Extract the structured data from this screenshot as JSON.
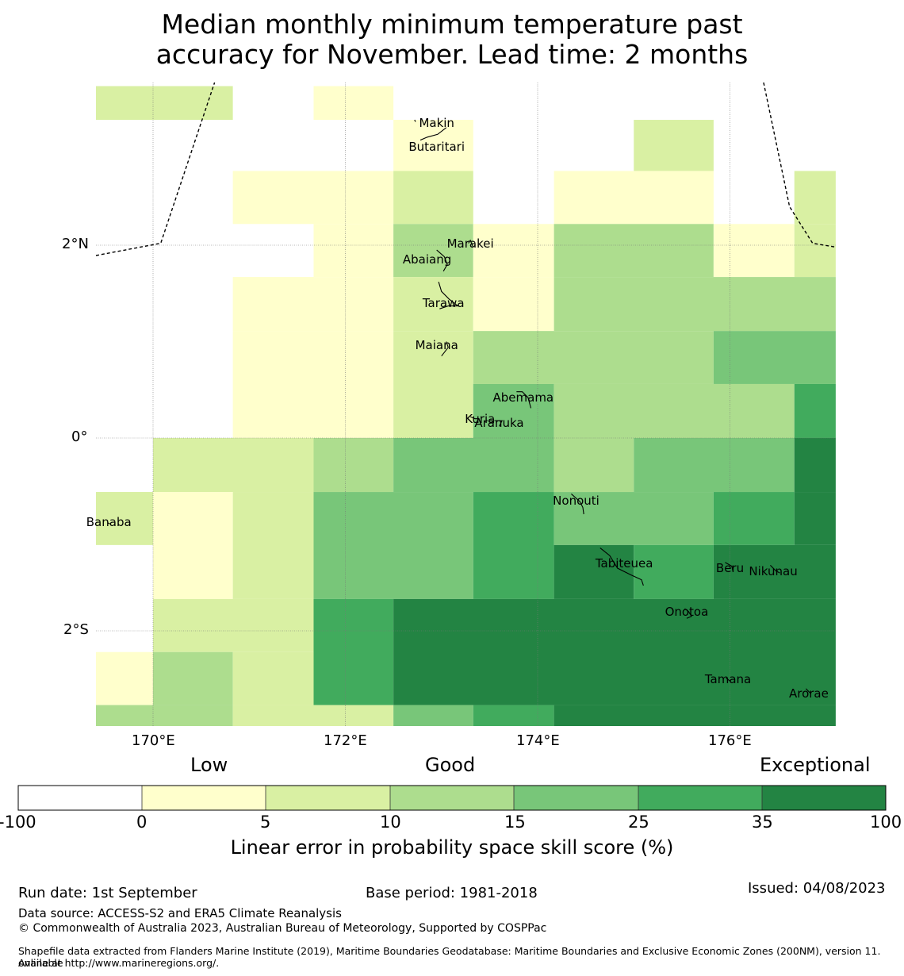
{
  "title_line1": "Median monthly minimum temperature past",
  "title_line2": "accuracy for November. Lead time: 2 months",
  "map": {
    "lat_labels": [
      "2°N",
      "0°",
      "2°S"
    ],
    "lon_labels": [
      "170°E",
      "172°E",
      "174°E",
      "176°E"
    ],
    "places": [
      {
        "name": "Makin",
        "lon": 172.95,
        "lat": 3.27
      },
      {
        "name": "Butaritari",
        "lon": 172.95,
        "lat": 3.02
      },
      {
        "name": "Marakei",
        "lon": 173.3,
        "lat": 2.02
      },
      {
        "name": "Abaiang",
        "lon": 172.85,
        "lat": 1.85
      },
      {
        "name": "Tarawa",
        "lon": 173.02,
        "lat": 1.4
      },
      {
        "name": "Maiana",
        "lon": 172.95,
        "lat": 0.96
      },
      {
        "name": "Abemama",
        "lon": 173.85,
        "lat": 0.42
      },
      {
        "name": "Kuria",
        "lon": 173.4,
        "lat": 0.2
      },
      {
        "name": "Aranuka",
        "lon": 173.6,
        "lat": 0.16
      },
      {
        "name": "Nonouti",
        "lon": 174.4,
        "lat": -0.65
      },
      {
        "name": "Banaba",
        "lon": 169.54,
        "lat": -0.87
      },
      {
        "name": "Tabiteuea",
        "lon": 174.9,
        "lat": -1.3
      },
      {
        "name": "Beru",
        "lon": 176.0,
        "lat": -1.35
      },
      {
        "name": "Nikunau",
        "lon": 176.45,
        "lat": -1.38
      },
      {
        "name": "Onotoa",
        "lon": 175.55,
        "lat": -1.8
      },
      {
        "name": "Tamana",
        "lon": 175.98,
        "lat": -2.5
      },
      {
        "name": "Arorae",
        "lon": 176.82,
        "lat": -2.65
      }
    ],
    "grid_cells": [
      {
        "lon0": 169.4,
        "lon1": 170.83,
        "lat0": 3.3,
        "lat1": 3.65,
        "cls": 2
      },
      {
        "lon0": 171.67,
        "lon1": 172.5,
        "lat0": 3.3,
        "lat1": 3.65,
        "cls": 1
      },
      {
        "lon0": 172.5,
        "lon1": 173.33,
        "lat0": 2.77,
        "lat1": 3.3,
        "cls": 1
      },
      {
        "lon0": 175.0,
        "lon1": 175.83,
        "lat0": 2.77,
        "lat1": 3.3,
        "cls": 2
      },
      {
        "lon0": 170.83,
        "lon1": 172.5,
        "lat0": 2.22,
        "lat1": 2.77,
        "cls": 1
      },
      {
        "lon0": 172.5,
        "lon1": 173.33,
        "lat0": 2.22,
        "lat1": 2.77,
        "cls": 2
      },
      {
        "lon0": 174.17,
        "lon1": 175.83,
        "lat0": 2.22,
        "lat1": 2.77,
        "cls": 1
      },
      {
        "lon0": 176.67,
        "lon1": 177.1,
        "lat0": 2.22,
        "lat1": 2.77,
        "cls": 2
      },
      {
        "lon0": 171.67,
        "lon1": 172.5,
        "lat0": 1.67,
        "lat1": 2.22,
        "cls": 1
      },
      {
        "lon0": 172.5,
        "lon1": 173.33,
        "lat0": 1.67,
        "lat1": 2.22,
        "cls": 3
      },
      {
        "lon0": 173.33,
        "lon1": 174.17,
        "lat0": 1.67,
        "lat1": 2.22,
        "cls": 1
      },
      {
        "lon0": 174.17,
        "lon1": 175.83,
        "lat0": 1.67,
        "lat1": 2.22,
        "cls": 3
      },
      {
        "lon0": 175.83,
        "lon1": 176.67,
        "lat0": 1.67,
        "lat1": 2.22,
        "cls": 1
      },
      {
        "lon0": 176.67,
        "lon1": 177.1,
        "lat0": 1.67,
        "lat1": 2.22,
        "cls": 2
      },
      {
        "lon0": 170.83,
        "lon1": 172.5,
        "lat0": 1.11,
        "lat1": 1.67,
        "cls": 1
      },
      {
        "lon0": 172.5,
        "lon1": 173.33,
        "lat0": 1.11,
        "lat1": 1.67,
        "cls": 2
      },
      {
        "lon0": 173.33,
        "lon1": 174.17,
        "lat0": 1.11,
        "lat1": 1.67,
        "cls": 1
      },
      {
        "lon0": 174.17,
        "lon1": 177.1,
        "lat0": 1.11,
        "lat1": 1.67,
        "cls": 3
      },
      {
        "lon0": 170.83,
        "lon1": 172.5,
        "lat0": 0.0,
        "lat1": 1.11,
        "cls": 1
      },
      {
        "lon0": 172.5,
        "lon1": 173.33,
        "lat0": 0.0,
        "lat1": 1.11,
        "cls": 2
      },
      {
        "lon0": 173.33,
        "lon1": 175.83,
        "lat0": 0.56,
        "lat1": 1.11,
        "cls": 3
      },
      {
        "lon0": 175.83,
        "lon1": 177.1,
        "lat0": 0.56,
        "lat1": 1.11,
        "cls": 4
      },
      {
        "lon0": 173.33,
        "lon1": 174.17,
        "lat0": 0.0,
        "lat1": 0.56,
        "cls": 4
      },
      {
        "lon0": 174.17,
        "lon1": 176.67,
        "lat0": 0.0,
        "lat1": 0.56,
        "cls": 3
      },
      {
        "lon0": 176.67,
        "lon1": 177.1,
        "lat0": 0.0,
        "lat1": 0.56,
        "cls": 5
      },
      {
        "lon0": 170.0,
        "lon1": 171.67,
        "lat0": -0.56,
        "lat1": 0.0,
        "cls": 2
      },
      {
        "lon0": 171.67,
        "lon1": 172.5,
        "lat0": -0.56,
        "lat1": 0.0,
        "cls": 3
      },
      {
        "lon0": 172.5,
        "lon1": 174.17,
        "lat0": -0.56,
        "lat1": 0.0,
        "cls": 4
      },
      {
        "lon0": 174.17,
        "lon1": 175.0,
        "lat0": -0.56,
        "lat1": 0.0,
        "cls": 3
      },
      {
        "lon0": 175.0,
        "lon1": 176.67,
        "lat0": -0.56,
        "lat1": 0.0,
        "cls": 4
      },
      {
        "lon0": 176.67,
        "lon1": 177.1,
        "lat0": -0.56,
        "lat1": 0.0,
        "cls": 6
      },
      {
        "lon0": 169.4,
        "lon1": 170.0,
        "lat0": -1.11,
        "lat1": -0.56,
        "cls": 2
      },
      {
        "lon0": 170.0,
        "lon1": 170.83,
        "lat0": -1.67,
        "lat1": -0.56,
        "cls": 1
      },
      {
        "lon0": 170.83,
        "lon1": 171.67,
        "lat0": -1.67,
        "lat1": -0.56,
        "cls": 2
      },
      {
        "lon0": 171.67,
        "lon1": 173.33,
        "lat0": -1.67,
        "lat1": -0.56,
        "cls": 4
      },
      {
        "lon0": 173.33,
        "lon1": 174.17,
        "lat0": -1.67,
        "lat1": -0.56,
        "cls": 5
      },
      {
        "lon0": 174.17,
        "lon1": 175.83,
        "lat0": -1.11,
        "lat1": -0.56,
        "cls": 4
      },
      {
        "lon0": 175.83,
        "lon1": 176.67,
        "lat0": -1.11,
        "lat1": -0.56,
        "cls": 5
      },
      {
        "lon0": 176.67,
        "lon1": 177.1,
        "lat0": -1.11,
        "lat1": -0.56,
        "cls": 6
      },
      {
        "lon0": 174.17,
        "lon1": 175.0,
        "lat0": -1.67,
        "lat1": -1.11,
        "cls": 6
      },
      {
        "lon0": 175.0,
        "lon1": 175.83,
        "lat0": -1.67,
        "lat1": -1.11,
        "cls": 5
      },
      {
        "lon0": 175.83,
        "lon1": 177.1,
        "lat0": -1.67,
        "lat1": -1.11,
        "cls": 6
      },
      {
        "lon0": 170.0,
        "lon1": 171.67,
        "lat0": -2.22,
        "lat1": -1.67,
        "cls": 2
      },
      {
        "lon0": 171.67,
        "lon1": 172.5,
        "lat0": -2.77,
        "lat1": -1.67,
        "cls": 5
      },
      {
        "lon0": 172.5,
        "lon1": 177.1,
        "lat0": -2.77,
        "lat1": -1.67,
        "cls": 6
      },
      {
        "lon0": 169.4,
        "lon1": 170.0,
        "lat0": -2.77,
        "lat1": -2.22,
        "cls": 1
      },
      {
        "lon0": 170.0,
        "lon1": 170.83,
        "lat0": -2.77,
        "lat1": -2.22,
        "cls": 3
      },
      {
        "lon0": 170.83,
        "lon1": 171.67,
        "lat0": -2.77,
        "lat1": -2.22,
        "cls": 2
      },
      {
        "lon0": 169.4,
        "lon1": 170.83,
        "lat0": -3.0,
        "lat1": -2.77,
        "cls": 3
      },
      {
        "lon0": 170.83,
        "lon1": 172.5,
        "lat0": -3.0,
        "lat1": -2.77,
        "cls": 2
      },
      {
        "lon0": 172.5,
        "lon1": 173.33,
        "lat0": -3.0,
        "lat1": -2.77,
        "cls": 4
      },
      {
        "lon0": 173.33,
        "lon1": 174.17,
        "lat0": -3.0,
        "lat1": -2.77,
        "cls": 5
      },
      {
        "lon0": 174.17,
        "lon1": 177.1,
        "lat0": -3.0,
        "lat1": -2.77,
        "cls": 6
      }
    ]
  },
  "colorbar": {
    "category_labels": [
      "Low",
      "Good",
      "Exceptional"
    ],
    "tick_labels": [
      "-100",
      "0",
      "5",
      "10",
      "15",
      "25",
      "35",
      "100"
    ],
    "colors": [
      "#ffffff",
      "#ffffcc",
      "#d9f0a3",
      "#addd8e",
      "#78c679",
      "#41ab5d",
      "#238443"
    ],
    "label": "Linear error in probability space skill score (%)"
  },
  "footer": {
    "run_date": "Run date: 1st September",
    "base_period": "Base period: 1981-2018",
    "issued": "Issued: 04/08/2023",
    "data_source": "Data source: ACCESS-S2 and ERA5 Climate Reanalysis",
    "copyright": "© Commonwealth of Australia 2023, Australian Bureau of Meteorology, Supported by COSPPac",
    "shapefile_line1": "Shapefile data extracted from Flanders Marine Institute (2019), Maritime Boundaries Geodatabase: Maritime Boundaries and Exclusive Economic Zones (200NM), version 11. Available",
    "shapefile_line2": "online at http://www.marineregions.org/."
  }
}
